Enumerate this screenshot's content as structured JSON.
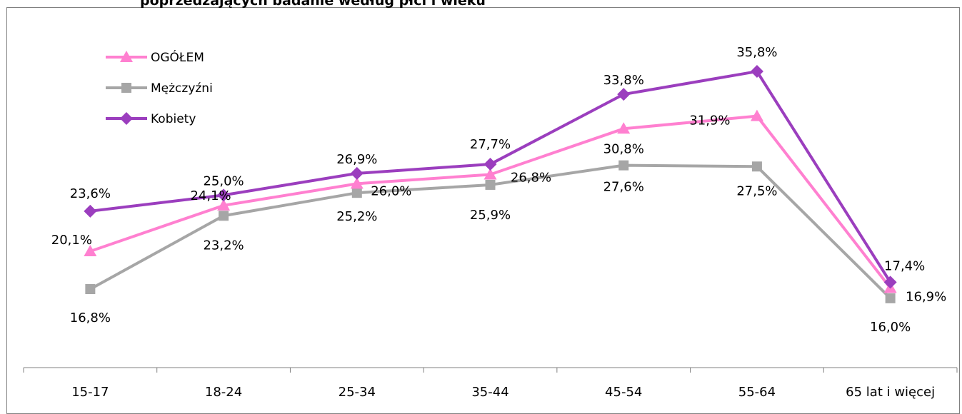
{
  "chart_data": {
    "type": "line",
    "title": "poprzedzających badanie według płci i wieku",
    "categories": [
      "15-17",
      "18-24",
      "25-34",
      "35-44",
      "45-54",
      "55-64",
      "65 lat i więcej"
    ],
    "ylim": [
      10,
      40
    ],
    "grid": false,
    "legend": "top-left",
    "series": [
      {
        "name": "OGÓŁEM",
        "color": "#FF80D0",
        "marker": "triangle",
        "values": [
          20.1,
          24.1,
          26.0,
          26.8,
          30.8,
          31.9,
          16.9
        ],
        "labels": [
          "20,1%",
          "24,1%",
          "26,0%",
          "26,8%",
          "30,8%",
          "31,9%",
          "16,9%"
        ]
      },
      {
        "name": "Mężczyźni",
        "color": "#A6A6A6",
        "marker": "square",
        "values": [
          16.8,
          23.2,
          25.2,
          25.9,
          27.6,
          27.5,
          16.0
        ],
        "labels": [
          "16,8%",
          "23,2%",
          "25,2%",
          "25,9%",
          "27,6%",
          "27,5%",
          "16,0%"
        ]
      },
      {
        "name": "Kobiety",
        "color": "#9B3EBE",
        "marker": "diamond",
        "values": [
          23.6,
          25.0,
          26.9,
          27.7,
          33.8,
          35.8,
          17.4
        ],
        "labels": [
          "23,6%",
          "25,0%",
          "26,9%",
          "27,7%",
          "33,8%",
          "35,8%",
          "17,4%"
        ]
      }
    ]
  }
}
